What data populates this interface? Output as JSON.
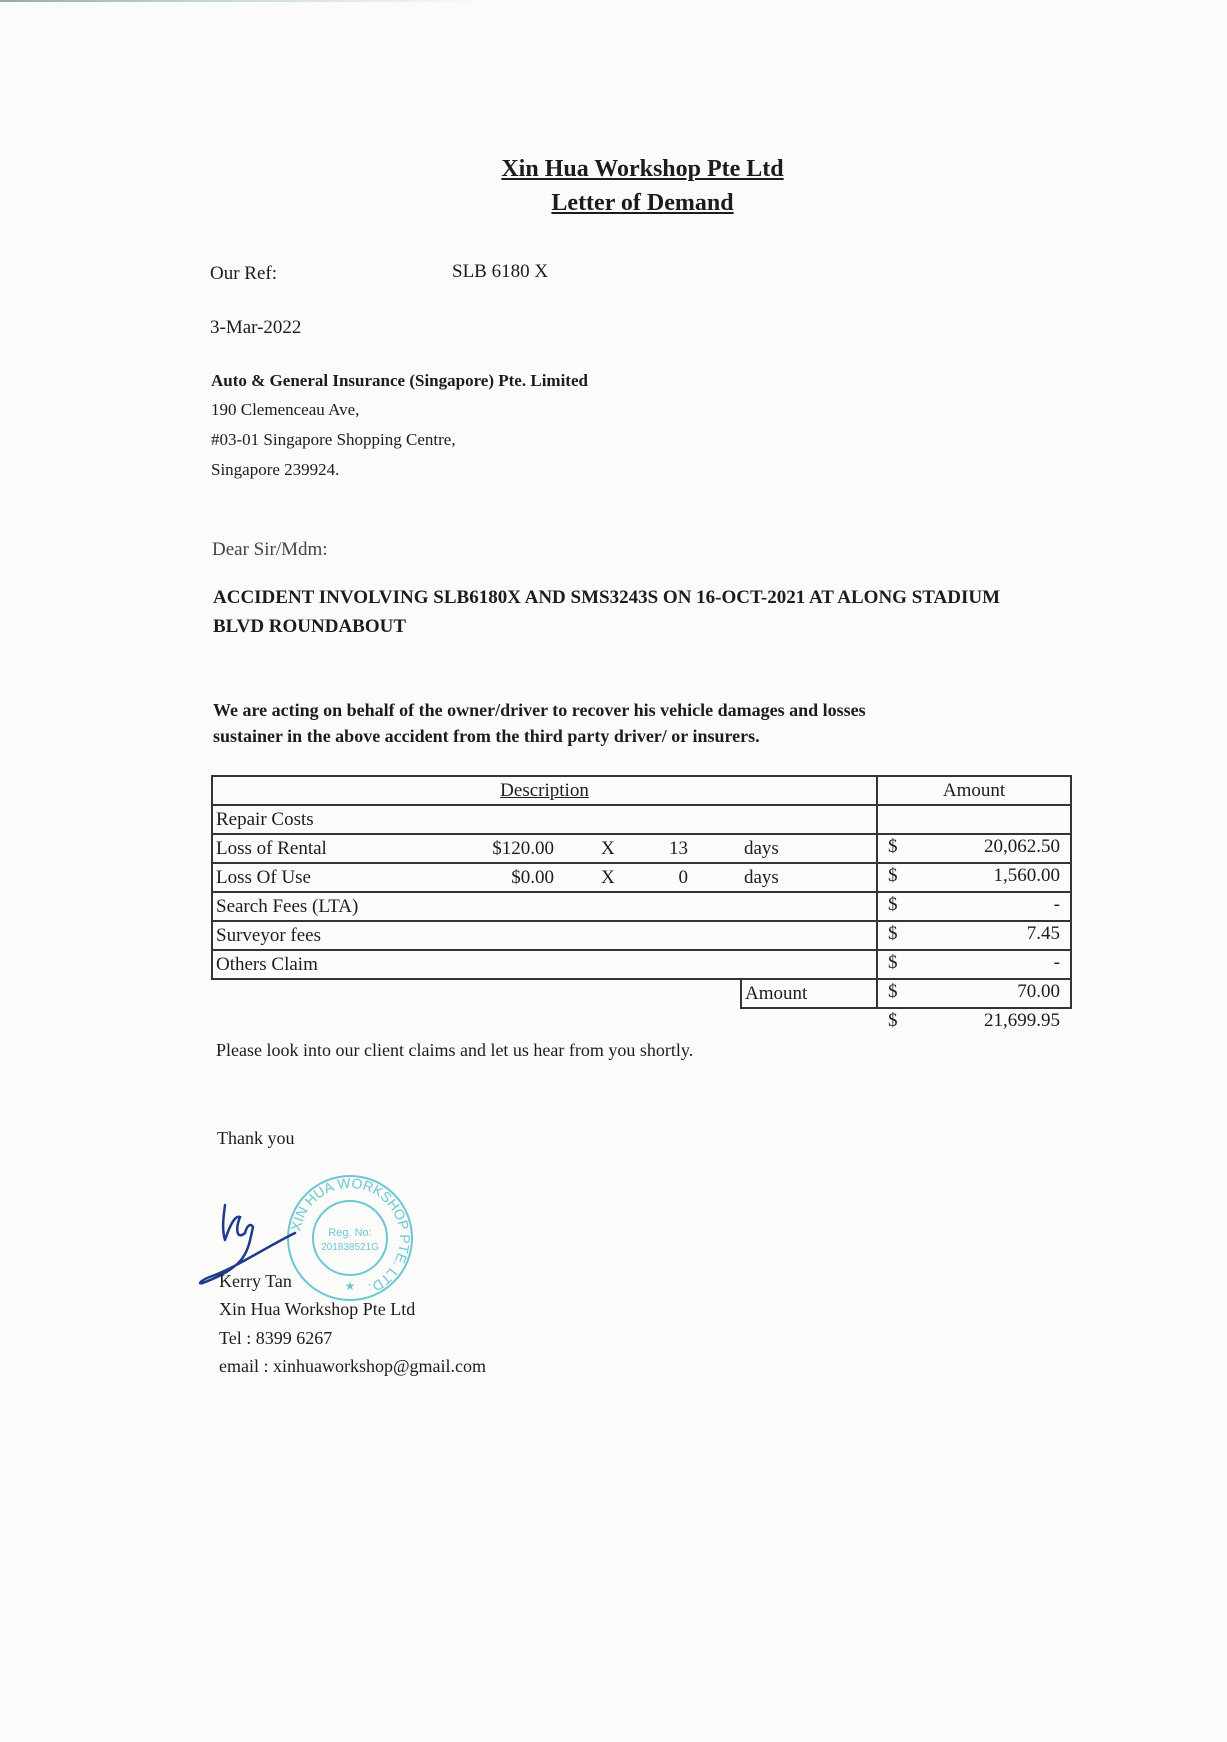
{
  "header": {
    "company": "Xin Hua Workshop Pte Ltd",
    "subject": "Letter of Demand"
  },
  "ref": {
    "label": "Our Ref:",
    "value": "SLB 6180 X"
  },
  "date": "3-Mar-2022",
  "recipient": {
    "name": "Auto & General Insurance (Singapore) Pte. Limited",
    "lines": [
      "190 Clemenceau Ave,",
      "#03-01 Singapore Shopping Centre,",
      "Singapore 239924."
    ]
  },
  "salutation": "Dear Sir/Mdm:",
  "heading": [
    "ACCIDENT INVOLVING SLB6180X AND SMS3243S ON 16-OCT-2021 AT ALONG STADIUM",
    "BLVD ROUNDABOUT"
  ],
  "intro": [
    "We are acting on behalf of the owner/driver to recover his vehicle damages and losses",
    "sustainer in the above accident from the third party driver/ or insurers."
  ],
  "table": {
    "headers": {
      "description": "Description",
      "amount": "Amount"
    },
    "rows": [
      {
        "label": "Repair Costs",
        "rate": "",
        "x": "",
        "days": "",
        "unit": "",
        "currency": "$",
        "amount": "20,062.50"
      },
      {
        "label": "Loss of Rental",
        "rate": "$120.00",
        "x": "X",
        "days": "13",
        "unit": "days",
        "currency": "$",
        "amount": "1,560.00"
      },
      {
        "label": "Loss Of Use",
        "rate": "$0.00",
        "x": "X",
        "days": "0",
        "unit": "days",
        "currency": "$",
        "amount": "-"
      },
      {
        "label": "Search Fees (LTA)",
        "rate": "",
        "x": "",
        "days": "",
        "unit": "",
        "currency": "$",
        "amount": "7.45"
      },
      {
        "label": "Surveyor fees",
        "rate": "",
        "x": "",
        "days": "",
        "unit": "",
        "currency": "$",
        "amount": "-"
      },
      {
        "label": "Others Claim",
        "rate": "",
        "x": "",
        "days": "",
        "unit": "",
        "currency": "$",
        "amount": "70.00"
      }
    ],
    "total": {
      "label": "Amount",
      "currency": "$",
      "amount": "21,699.95"
    }
  },
  "closing": "Please look into our client claims and let us hear from you shortly.",
  "thanks": "Thank you",
  "stamp": {
    "ring": "XIN HUA WORKSHOP PTE. LTD.",
    "reg_label": "Reg. No:",
    "reg_no": "201838521G",
    "color": "#6cc7d3"
  },
  "signature": {
    "color": "#1f3a8a"
  },
  "signoff": {
    "name": "Kerry Tan",
    "company": "Xin Hua Workshop Pte Ltd",
    "tel": "Tel : 8399 6267",
    "email": "email : xinhuaworkshop@gmail.com"
  }
}
